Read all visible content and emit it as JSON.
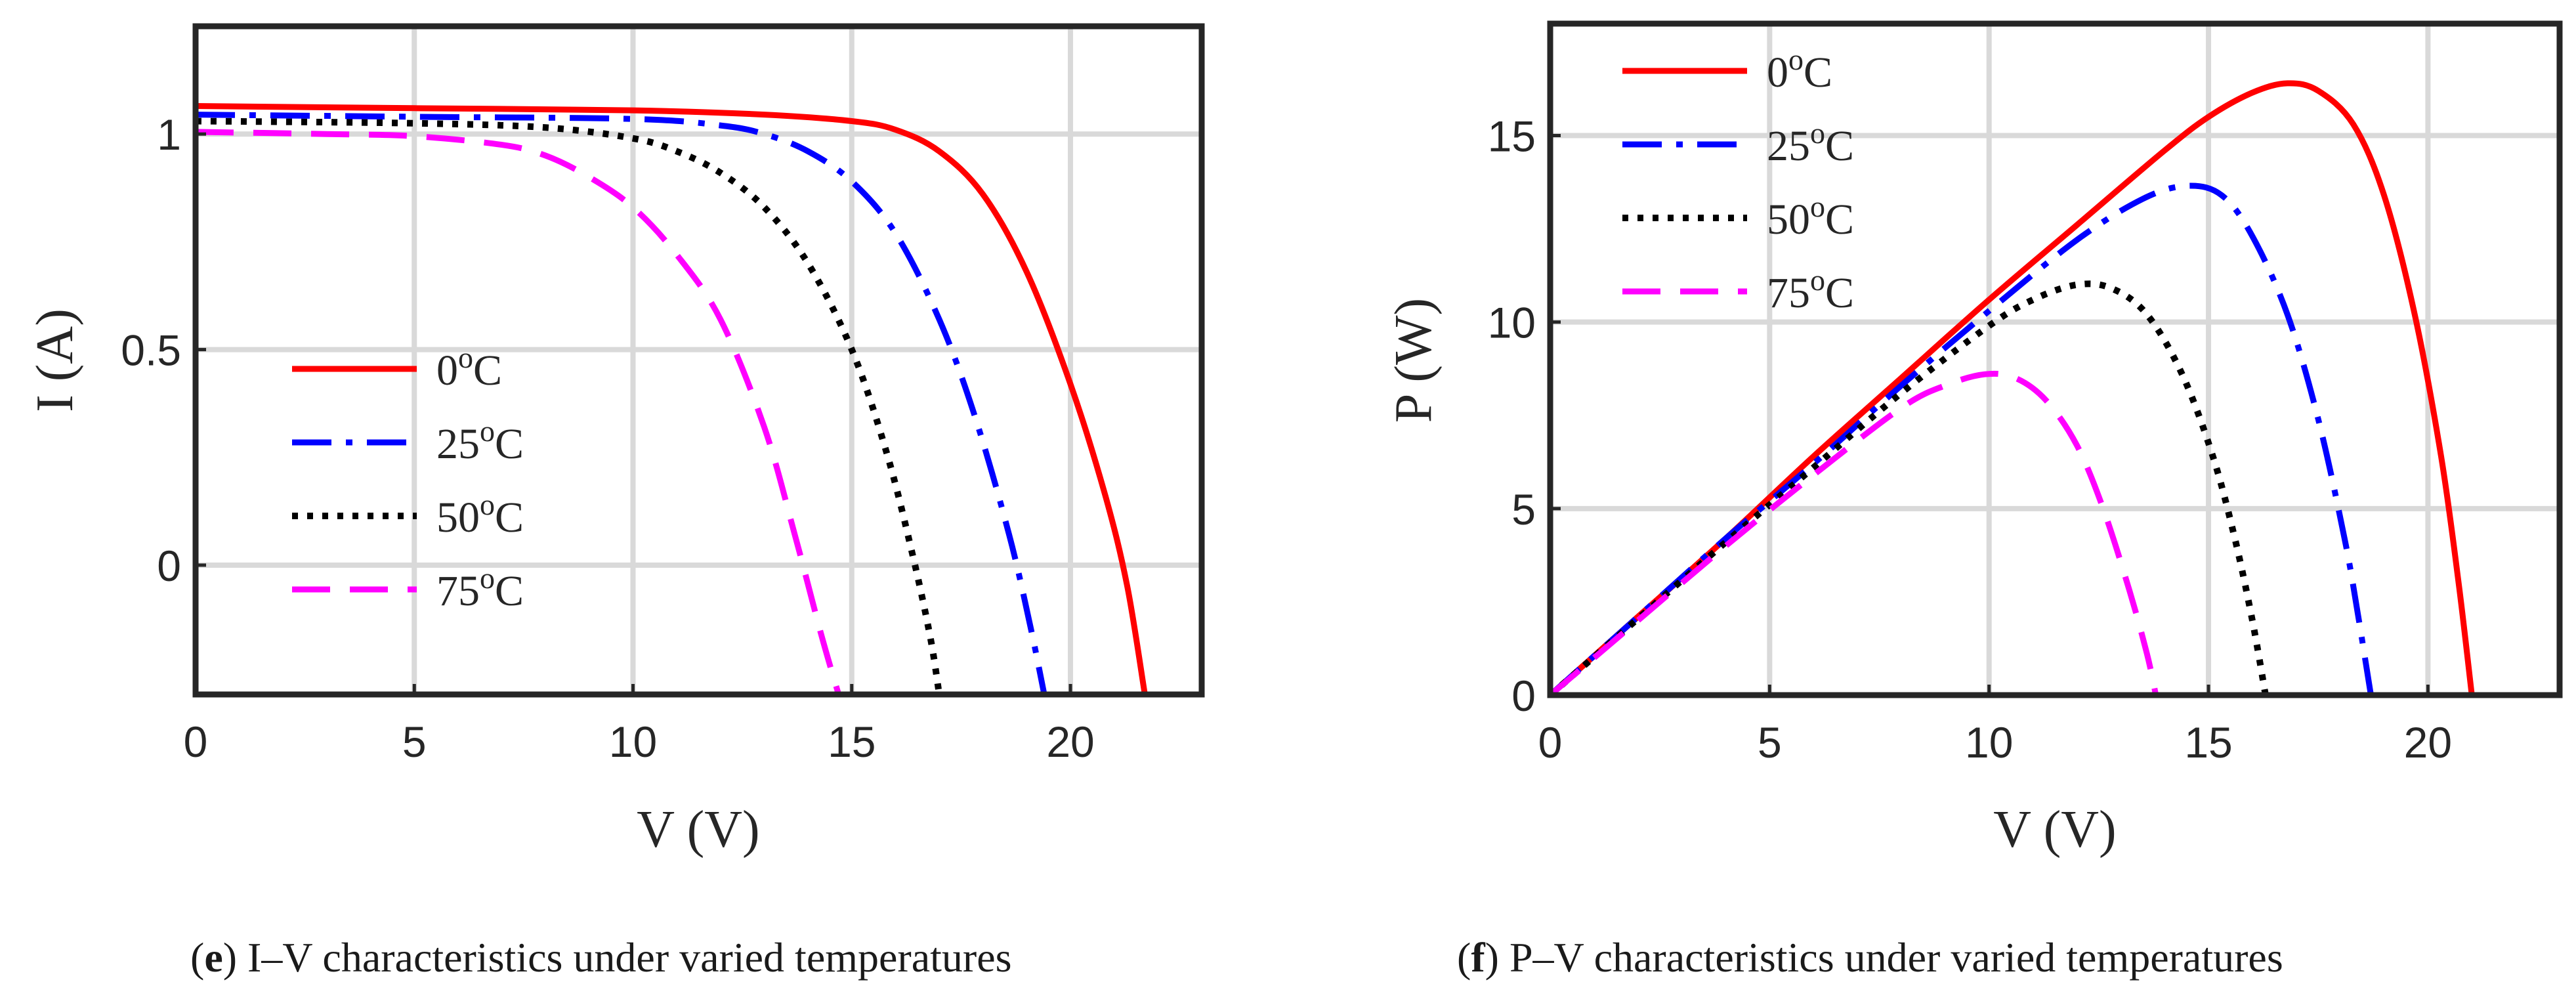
{
  "chart_data": [
    {
      "type": "line",
      "panel": "e",
      "caption_letter": "e",
      "caption_text": "I–V characteristics under varied temperatures",
      "xlabel": "V (V)",
      "ylabel": "I (A)",
      "ylabel_color": "#ff0000",
      "xlim": [
        0,
        23
      ],
      "ylim": [
        -0.3,
        1.25
      ],
      "xticks": [
        0,
        5,
        10,
        15,
        20
      ],
      "yticks": [
        0,
        0.5,
        1
      ],
      "xtick_labels": [
        "0",
        "5",
        "10",
        "15",
        "20"
      ],
      "ytick_labels": [
        "0",
        "0.5",
        "1"
      ],
      "grid": true,
      "legend_position": "center-left",
      "series": [
        {
          "name": "0",
          "unit": "oC",
          "color": "#ff0000",
          "style": "solid",
          "x": [
            0,
            5,
            10,
            13,
            15,
            16,
            17,
            18,
            19,
            20,
            20.8,
            21.3,
            21.7
          ],
          "y": [
            1.065,
            1.06,
            1.055,
            1.045,
            1.03,
            1.01,
            0.96,
            0.86,
            0.68,
            0.42,
            0.16,
            -0.05,
            -0.3
          ]
        },
        {
          "name": "25",
          "unit": "oC",
          "color": "#0000ff",
          "style": "dashdot",
          "x": [
            0,
            5,
            10,
            12,
            13,
            14,
            15,
            16,
            17,
            17.8,
            18.6,
            19.1,
            19.4
          ],
          "y": [
            1.045,
            1.04,
            1.035,
            1.02,
            1.0,
            0.96,
            0.89,
            0.77,
            0.57,
            0.35,
            0.07,
            -0.15,
            -0.3
          ]
        },
        {
          "name": "50",
          "unit": "oC",
          "color": "#000000",
          "style": "dotted",
          "x": [
            0,
            5,
            8,
            10,
            11,
            12,
            13,
            14,
            15,
            15.8,
            16.4,
            16.8,
            17.0
          ],
          "y": [
            1.03,
            1.025,
            1.015,
            0.99,
            0.96,
            0.91,
            0.83,
            0.7,
            0.5,
            0.26,
            0.02,
            -0.17,
            -0.3
          ]
        },
        {
          "name": "75",
          "unit": "oC",
          "color": "#ff00ff",
          "style": "dashed",
          "x": [
            0,
            3,
            5,
            7,
            8,
            9,
            10,
            11,
            12,
            13,
            13.7,
            14.3,
            14.7
          ],
          "y": [
            1.005,
            1.0,
            0.995,
            0.975,
            0.95,
            0.9,
            0.83,
            0.72,
            0.57,
            0.32,
            0.07,
            -0.16,
            -0.3
          ]
        }
      ]
    },
    {
      "type": "line",
      "panel": "f",
      "caption_letter": "f",
      "caption_text": "P–V characteristics under varied temperatures",
      "xlabel": "V (V)",
      "ylabel": "P (W)",
      "ylabel_color": "#0000ff",
      "xlim": [
        0,
        23
      ],
      "ylim": [
        0,
        18
      ],
      "xticks": [
        0,
        5,
        10,
        15,
        20
      ],
      "yticks": [
        0,
        5,
        10,
        15
      ],
      "xtick_labels": [
        "0",
        "5",
        "10",
        "15",
        "20"
      ],
      "ytick_labels": [
        "0",
        "5",
        "10",
        "15"
      ],
      "grid": true,
      "legend_position": "top-left",
      "series": [
        {
          "name": "0",
          "unit": "oC",
          "color": "#ff0000",
          "style": "solid",
          "x": [
            0,
            2,
            4,
            6,
            8,
            10,
            12,
            14,
            15,
            16,
            16.8,
            17.5,
            18.3,
            19,
            19.7,
            20.3,
            20.7,
            21.0
          ],
          "y": [
            0,
            2.1,
            4.2,
            6.4,
            8.5,
            10.6,
            12.6,
            14.6,
            15.5,
            16.15,
            16.4,
            16.2,
            15.3,
            13.4,
            10.2,
            6.4,
            3.0,
            0
          ]
        },
        {
          "name": "25",
          "unit": "oC",
          "color": "#0000ff",
          "style": "dashdot",
          "x": [
            0,
            2,
            4,
            6,
            8,
            10,
            12,
            13.5,
            14.5,
            15.3,
            16,
            16.8,
            17.5,
            18.1,
            18.4,
            18.7
          ],
          "y": [
            0,
            2.1,
            4.2,
            6.2,
            8.3,
            10.3,
            12.2,
            13.3,
            13.65,
            13.4,
            12.3,
            10.2,
            7.4,
            4.2,
            2.2,
            0
          ]
        },
        {
          "name": "50",
          "unit": "oC",
          "color": "#000000",
          "style": "dotted",
          "x": [
            0,
            2,
            4,
            6,
            8,
            10,
            11,
            12,
            12.8,
            13.6,
            14.4,
            15.1,
            15.6,
            16.0,
            16.3
          ],
          "y": [
            0,
            2.05,
            4.1,
            6.1,
            8.1,
            9.9,
            10.6,
            11.0,
            10.9,
            10.2,
            8.6,
            6.4,
            4.2,
            2.0,
            0
          ]
        },
        {
          "name": "75",
          "unit": "oC",
          "color": "#ff00ff",
          "style": "dashed",
          "x": [
            0,
            2,
            4,
            6,
            8,
            9,
            9.9,
            10.6,
            11.3,
            12.0,
            12.6,
            13.2,
            13.6,
            13.8
          ],
          "y": [
            0,
            2.0,
            4.0,
            5.9,
            7.7,
            8.3,
            8.6,
            8.5,
            7.9,
            6.7,
            5.0,
            2.8,
            1.1,
            0
          ]
        }
      ]
    }
  ]
}
